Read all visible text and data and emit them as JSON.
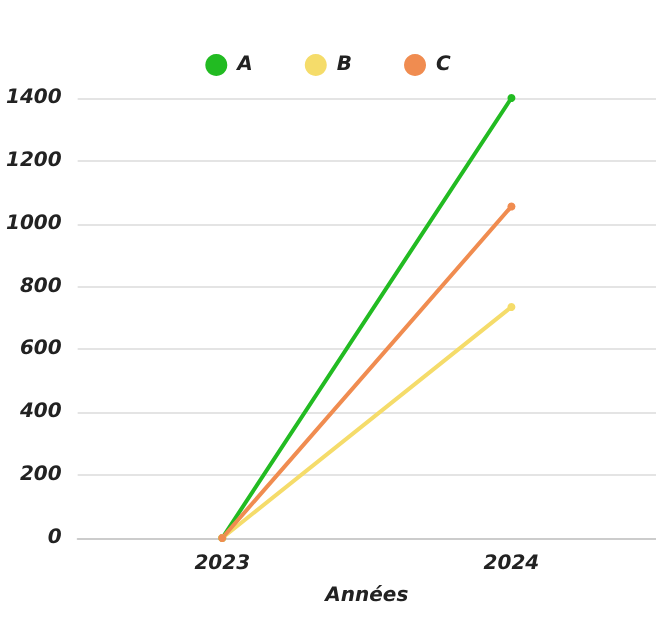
{
  "chart_data": {
    "type": "line",
    "xlabel": "Années",
    "categories": [
      "2023",
      "2024"
    ],
    "series": [
      {
        "name": "A",
        "color": "#22bb22",
        "values": [
          0,
          1400
        ]
      },
      {
        "name": "B",
        "color": "#f5dc6a",
        "values": [
          0,
          735
        ]
      },
      {
        "name": "C",
        "color": "#f08c50",
        "values": [
          0,
          1055
        ]
      }
    ],
    "ylim": [
      0,
      1400
    ],
    "yticks": [
      0,
      200,
      400,
      600,
      800,
      1000,
      1200,
      1400
    ],
    "grid": "y",
    "legend": "top",
    "marker": "circle",
    "line_style": "solid"
  }
}
